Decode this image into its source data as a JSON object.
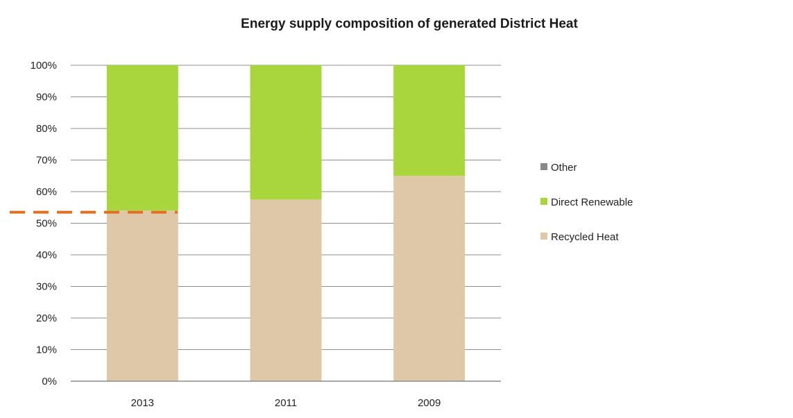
{
  "chart_data": {
    "type": "bar",
    "stacked": true,
    "title": "Energy supply composition of generated District Heat",
    "categories": [
      "2013",
      "2011",
      "2009"
    ],
    "series": [
      {
        "name": "Recycled Heat",
        "values": [
          54,
          57.5,
          65
        ],
        "color": "#dfc8a8"
      },
      {
        "name": "Direct Renewable",
        "values": [
          46,
          42.5,
          35
        ],
        "color": "#a8d63c"
      },
      {
        "name": "Other",
        "values": [
          0,
          0,
          0
        ],
        "color": "#888888"
      }
    ],
    "ylim": [
      0,
      100
    ],
    "yticks": [
      "0%",
      "10%",
      "20%",
      "30%",
      "40%",
      "50%",
      "60%",
      "70%",
      "80%",
      "90%",
      "100%"
    ],
    "xlabel": "",
    "ylabel": "",
    "grid": true,
    "legend_position": "right",
    "legend_order": [
      "Other",
      "Direct Renewable",
      "Recycled Heat"
    ],
    "reference_line": {
      "value": 53.5,
      "color": "#e07020",
      "style": "dashed"
    }
  }
}
